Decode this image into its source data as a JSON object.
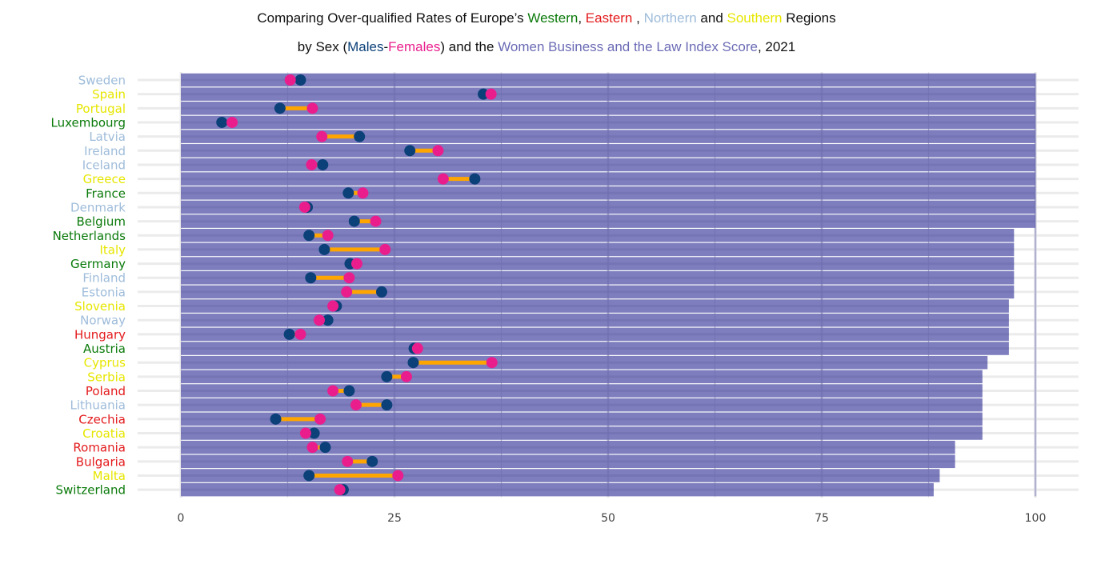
{
  "chart_data": {
    "type": "bar",
    "subtype": "horizontal bar with dumbbell overlay",
    "title_line1": [
      {
        "text": "Comparing Over-qualified Rates of Europe’s ",
        "color": "#111111"
      },
      {
        "text": "Western",
        "color": "#0a7a0a"
      },
      {
        "text": ", ",
        "color": "#111111"
      },
      {
        "text": "Eastern",
        "color": "#e31a1c"
      },
      {
        "text": " , ",
        "color": "#111111"
      },
      {
        "text": "Northern",
        "color": "#9ebcda"
      },
      {
        "text": " and ",
        "color": "#111111"
      },
      {
        "text": "Southern",
        "color": "#e6e600"
      },
      {
        "text": " Regions",
        "color": "#111111"
      }
    ],
    "title_line2": [
      {
        "text": "by Sex (",
        "color": "#111111"
      },
      {
        "text": "Males",
        "color": "#0b4078"
      },
      {
        "text": "-",
        "color": "#111111"
      },
      {
        "text": "Females",
        "color": "#e91e8c"
      },
      {
        "text": ") and the ",
        "color": "#111111"
      },
      {
        "text": "Women Business and the Law Index Score",
        "color": "#6b6bb5"
      },
      {
        "text": ", 2021",
        "color": "#111111"
      }
    ],
    "xlabel": "",
    "ylabel": "",
    "xlim": [
      0,
      100
    ],
    "x_ticks": [
      0,
      25,
      50,
      75,
      100
    ],
    "x_tick_labels": [
      "0",
      "25",
      "50",
      "75",
      "100"
    ],
    "grid": true,
    "colors": {
      "bar": "#7b7bbd",
      "male": "#0b4078",
      "female": "#e91e8c",
      "segment": "#ffa500",
      "Western": "#0a7a0a",
      "Eastern": "#e31a1c",
      "Northern": "#9ebcda",
      "Southern": "#e6e600"
    },
    "series": [
      {
        "name": "Women Business and the Law Index Score",
        "kind": "bar"
      },
      {
        "name": "Males",
        "kind": "point"
      },
      {
        "name": "Females",
        "kind": "point"
      }
    ],
    "rows": [
      {
        "country": "Sweden",
        "region": "Northern",
        "index": 100,
        "male": 14.0,
        "female": 12.8
      },
      {
        "country": "Spain",
        "region": "Southern",
        "index": 100,
        "male": 35.4,
        "female": 36.3
      },
      {
        "country": "Portugal",
        "region": "Southern",
        "index": 100,
        "male": 11.6,
        "female": 15.4
      },
      {
        "country": "Luxembourg",
        "region": "Western",
        "index": 100,
        "male": 4.8,
        "female": 6.0
      },
      {
        "country": "Latvia",
        "region": "Northern",
        "index": 100,
        "male": 20.9,
        "female": 16.5
      },
      {
        "country": "Ireland",
        "region": "Northern",
        "index": 100,
        "male": 26.8,
        "female": 30.1
      },
      {
        "country": "Iceland",
        "region": "Northern",
        "index": 100,
        "male": 16.6,
        "female": 15.3
      },
      {
        "country": "Greece",
        "region": "Southern",
        "index": 100,
        "male": 34.4,
        "female": 30.7
      },
      {
        "country": "France",
        "region": "Western",
        "index": 100,
        "male": 19.6,
        "female": 21.3
      },
      {
        "country": "Denmark",
        "region": "Northern",
        "index": 100,
        "male": 14.8,
        "female": 14.5
      },
      {
        "country": "Belgium",
        "region": "Western",
        "index": 100,
        "male": 20.3,
        "female": 22.8
      },
      {
        "country": "Netherlands",
        "region": "Western",
        "index": 97.5,
        "male": 15.0,
        "female": 17.2
      },
      {
        "country": "Italy",
        "region": "Southern",
        "index": 97.5,
        "male": 16.8,
        "female": 23.9
      },
      {
        "country": "Germany",
        "region": "Western",
        "index": 97.5,
        "male": 19.8,
        "female": 20.6
      },
      {
        "country": "Finland",
        "region": "Northern",
        "index": 97.5,
        "male": 15.2,
        "female": 19.7
      },
      {
        "country": "Estonia",
        "region": "Northern",
        "index": 97.5,
        "male": 23.5,
        "female": 19.4
      },
      {
        "country": "Slovenia",
        "region": "Southern",
        "index": 96.9,
        "male": 18.2,
        "female": 17.8
      },
      {
        "country": "Norway",
        "region": "Northern",
        "index": 96.9,
        "male": 17.2,
        "female": 16.2
      },
      {
        "country": "Hungary",
        "region": "Eastern",
        "index": 96.9,
        "male": 12.7,
        "female": 14.0
      },
      {
        "country": "Austria",
        "region": "Western",
        "index": 96.9,
        "male": 27.3,
        "female": 27.7
      },
      {
        "country": "Cyprus",
        "region": "Southern",
        "index": 94.4,
        "male": 27.2,
        "female": 36.4
      },
      {
        "country": "Serbia",
        "region": "Southern",
        "index": 93.8,
        "male": 24.1,
        "female": 26.4
      },
      {
        "country": "Poland",
        "region": "Eastern",
        "index": 93.8,
        "male": 19.7,
        "female": 17.8
      },
      {
        "country": "Lithuania",
        "region": "Northern",
        "index": 93.8,
        "male": 24.1,
        "female": 20.5
      },
      {
        "country": "Czechia",
        "region": "Eastern",
        "index": 93.8,
        "male": 11.1,
        "female": 16.3
      },
      {
        "country": "Croatia",
        "region": "Southern",
        "index": 93.8,
        "male": 15.6,
        "female": 14.6
      },
      {
        "country": "Romania",
        "region": "Eastern",
        "index": 90.6,
        "male": 16.9,
        "female": 15.4
      },
      {
        "country": "Bulgaria",
        "region": "Eastern",
        "index": 90.6,
        "male": 22.4,
        "female": 19.5
      },
      {
        "country": "Malta",
        "region": "Southern",
        "index": 88.8,
        "male": 15.0,
        "female": 25.4
      },
      {
        "country": "Switzerland",
        "region": "Western",
        "index": 88.1,
        "male": 19.0,
        "female": 18.6
      }
    ]
  }
}
